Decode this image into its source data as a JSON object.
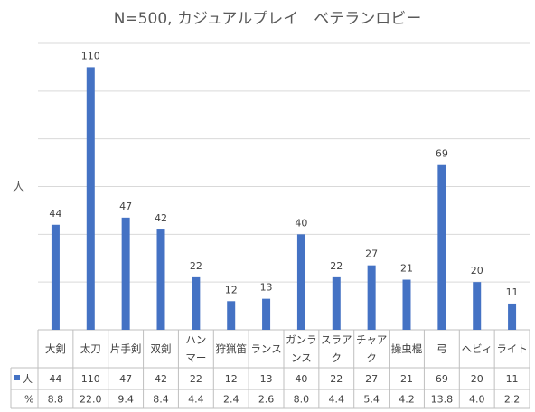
{
  "chart_data": {
    "type": "bar",
    "title": "N=500, カジュアルプレイ　ベテランロビー",
    "ylabel": "人",
    "ylim": [
      0,
      120
    ],
    "grid": true,
    "color": "#4472C4",
    "categories": [
      [
        "大剣"
      ],
      [
        "太刀"
      ],
      [
        "片手剣"
      ],
      [
        "双剣"
      ],
      [
        "ハン",
        "マー"
      ],
      [
        "狩猟笛"
      ],
      [
        "ランス"
      ],
      [
        "ガンラ",
        "ンス"
      ],
      [
        "スラア",
        "ク"
      ],
      [
        "チャア",
        "ク"
      ],
      [
        "操虫棍"
      ],
      [
        "弓"
      ],
      [
        "ヘビィ"
      ],
      [
        "ライト"
      ]
    ],
    "series": [
      {
        "name": "人",
        "values": [
          44,
          110,
          47,
          42,
          22,
          12,
          13,
          40,
          22,
          27,
          21,
          69,
          20,
          11
        ]
      }
    ],
    "table_rows": [
      {
        "label": "人",
        "values": [
          "44",
          "110",
          "47",
          "42",
          "22",
          "12",
          "13",
          "40",
          "22",
          "27",
          "21",
          "69",
          "20",
          "11"
        ]
      },
      {
        "label": "%",
        "values": [
          "8.8",
          "22.0",
          "9.4",
          "8.4",
          "4.4",
          "2.4",
          "2.6",
          "8.0",
          "4.4",
          "5.4",
          "4.2",
          "13.8",
          "4.0",
          "2.2"
        ]
      }
    ]
  }
}
